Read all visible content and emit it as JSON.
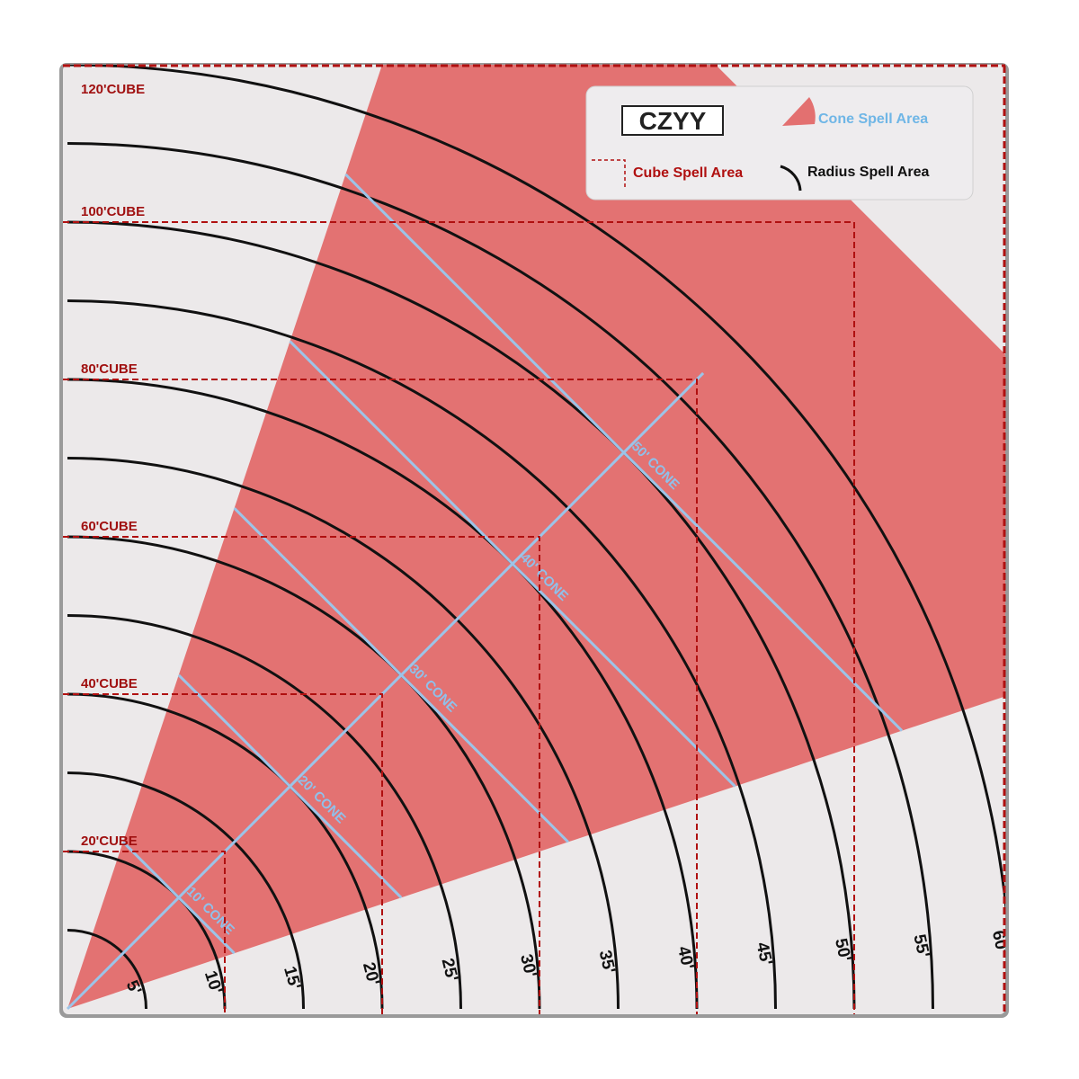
{
  "brand": "CZYY",
  "legend": {
    "cone": "Cone Spell Area",
    "cube": "Cube Spell Area",
    "radius": "Radius Spell Area"
  },
  "radius_labels": [
    "5'",
    "10'",
    "15'",
    "20'",
    "25'",
    "30'",
    "35'",
    "40'",
    "45'",
    "50'",
    "55'",
    "60'"
  ],
  "cube_labels": [
    "20'CUBE",
    "40'CUBE",
    "60'CUBE",
    "80'CUBE",
    "100'CUBE",
    "120'CUBE"
  ],
  "cone_labels": [
    "10' CONE",
    "20' CONE",
    "30' CONE",
    "40' CONE",
    "50' CONE"
  ]
}
